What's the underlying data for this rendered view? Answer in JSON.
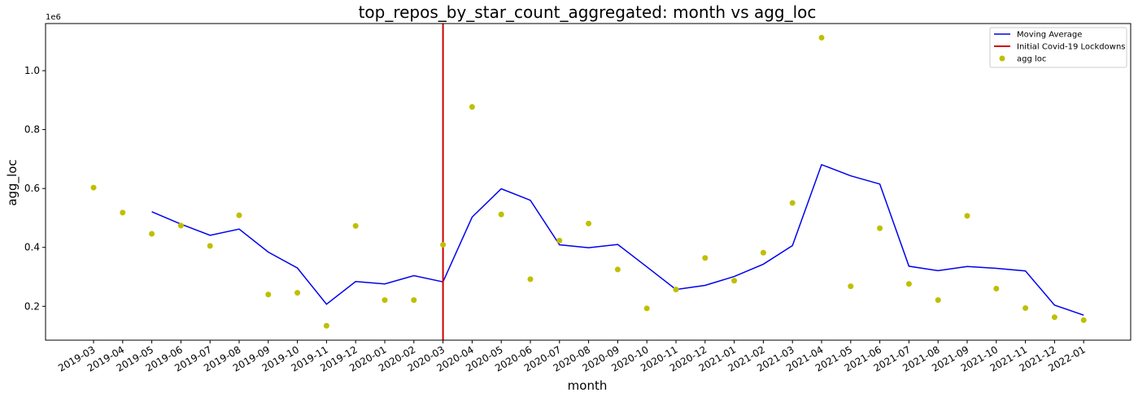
{
  "chart_data": {
    "type": "line",
    "title": "top_repos_by_star_count_aggregated: month vs agg_loc",
    "xlabel": "month",
    "ylabel": "agg_loc",
    "y_offset_label": "1e6",
    "ylim": [
      0.085,
      1.16
    ],
    "yticks": [
      0.2,
      0.4,
      0.6,
      0.8,
      1.0
    ],
    "ytick_labels": [
      "0.2",
      "0.4",
      "0.6",
      "0.8",
      "1.0"
    ],
    "categories": [
      "2019-03",
      "2019-04",
      "2019-05",
      "2019-06",
      "2019-07",
      "2019-08",
      "2019-09",
      "2019-10",
      "2019-11",
      "2019-12",
      "2020-01",
      "2020-02",
      "2020-03",
      "2020-04",
      "2020-05",
      "2020-06",
      "2020-07",
      "2020-08",
      "2020-09",
      "2020-10",
      "2020-11",
      "2020-12",
      "2021-01",
      "2021-02",
      "2021-03",
      "2021-04",
      "2021-05",
      "2021-06",
      "2021-07",
      "2021-08",
      "2021-09",
      "2021-10",
      "2021-11",
      "2021-12",
      "2022-01"
    ],
    "x_tick_rotation": "30 degrees",
    "grid": false,
    "legend_position": "top-right",
    "series": [
      {
        "name": "Moving Average",
        "kind": "line",
        "color": "#0000ee",
        "values": [
          null,
          null,
          0.521,
          0.479,
          0.441,
          0.462,
          0.384,
          0.33,
          0.207,
          0.284,
          0.276,
          0.304,
          0.283,
          0.503,
          0.599,
          0.56,
          0.409,
          0.399,
          0.41,
          0.334,
          0.257,
          0.271,
          0.301,
          0.343,
          0.406,
          0.681,
          0.643,
          0.615,
          0.336,
          0.321,
          0.335,
          0.329,
          0.32,
          0.204,
          0.17
        ]
      },
      {
        "name": "Initial Covid-19 Lockdowns",
        "kind": "vline",
        "color": "#cc0000",
        "x": "2020-03"
      },
      {
        "name": "agg loc",
        "kind": "scatter",
        "color": "#bfbf00",
        "values": [
          0.603,
          0.518,
          0.446,
          0.474,
          0.405,
          0.509,
          0.24,
          0.246,
          0.134,
          0.473,
          0.221,
          0.221,
          0.409,
          0.877,
          0.512,
          0.292,
          0.423,
          0.481,
          0.325,
          0.193,
          0.257,
          0.364,
          0.287,
          0.382,
          0.551,
          1.112,
          0.268,
          0.465,
          0.276,
          0.221,
          0.507,
          0.26,
          0.194,
          0.163,
          0.153
        ]
      }
    ]
  }
}
